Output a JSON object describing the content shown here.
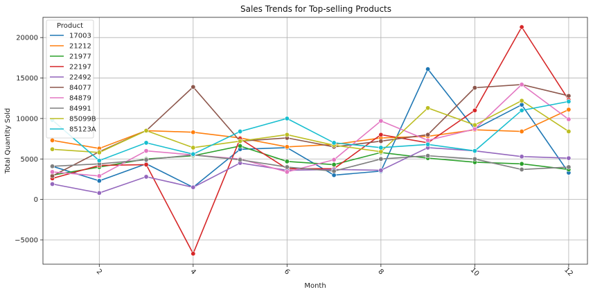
{
  "chart_data": {
    "type": "line",
    "title": "Sales Trends for Top-selling Products",
    "xlabel": "Month",
    "ylabel": "Total Quantity Sold",
    "legend_title": "Product",
    "legend_position": "top-left",
    "grid": true,
    "xlim": [
      0.8,
      12.4
    ],
    "ylim": [
      -8000,
      22500
    ],
    "x_ticks": [
      2,
      4,
      6,
      8,
      10,
      12
    ],
    "x_tick_labels": [
      "2",
      "4",
      "6",
      "8",
      "10",
      "12"
    ],
    "y_ticks": [
      -5000,
      0,
      5000,
      10000,
      15000,
      20000
    ],
    "y_tick_labels": [
      "−5000",
      "0",
      "5000",
      "10000",
      "15000",
      "20000"
    ],
    "x": [
      1,
      2,
      3,
      4,
      5,
      6,
      7,
      8,
      9,
      10,
      11,
      12
    ],
    "series": [
      {
        "name": "17003",
        "color": "#1f77b4",
        "values": [
          4100,
          2300,
          4400,
          1500,
          6200,
          6400,
          3000,
          3500,
          16100,
          8700,
          11700,
          3300
        ]
      },
      {
        "name": "21212",
        "color": "#ff7f0e",
        "values": [
          7300,
          6300,
          8500,
          8300,
          7600,
          6500,
          6800,
          7600,
          7800,
          8600,
          8400,
          11100
        ]
      },
      {
        "name": "21977",
        "color": "#2ca02c",
        "values": [
          3000,
          4000,
          5000,
          5400,
          6600,
          4700,
          4300,
          5800,
          5100,
          4600,
          4400,
          3700
        ]
      },
      {
        "name": "22197",
        "color": "#d62728",
        "values": [
          2600,
          4200,
          4300,
          -6700,
          7500,
          3800,
          3800,
          8000,
          7000,
          11000,
          21300,
          12300
        ]
      },
      {
        "name": "22492",
        "color": "#9467bd",
        "values": [
          1900,
          800,
          2800,
          1500,
          4500,
          3600,
          3700,
          3600,
          6400,
          6000,
          5300,
          5100
        ]
      },
      {
        "name": "84077",
        "color": "#8c564b",
        "values": [
          2900,
          5900,
          8500,
          13900,
          7200,
          7600,
          6500,
          7200,
          8000,
          13800,
          14200,
          12800
        ]
      },
      {
        "name": "84879",
        "color": "#e377c2",
        "values": [
          3400,
          2900,
          6000,
          5500,
          5000,
          3400,
          4900,
          9700,
          7300,
          8700,
          14200,
          9900
        ]
      },
      {
        "name": "84991",
        "color": "#7f7f7f",
        "values": [
          4100,
          4400,
          4900,
          5500,
          4900,
          4000,
          3500,
          5000,
          5400,
          5000,
          3700,
          4000
        ]
      },
      {
        "name": "85099B",
        "color": "#bcbd22",
        "values": [
          6200,
          5800,
          8500,
          6400,
          7200,
          8000,
          6700,
          5900,
          11300,
          9200,
          12200,
          8400
        ]
      },
      {
        "name": "85123A",
        "color": "#17becf",
        "values": [
          9800,
          4800,
          7000,
          5600,
          8400,
          10000,
          7000,
          6400,
          6800,
          6000,
          11000,
          12100
        ]
      }
    ]
  }
}
